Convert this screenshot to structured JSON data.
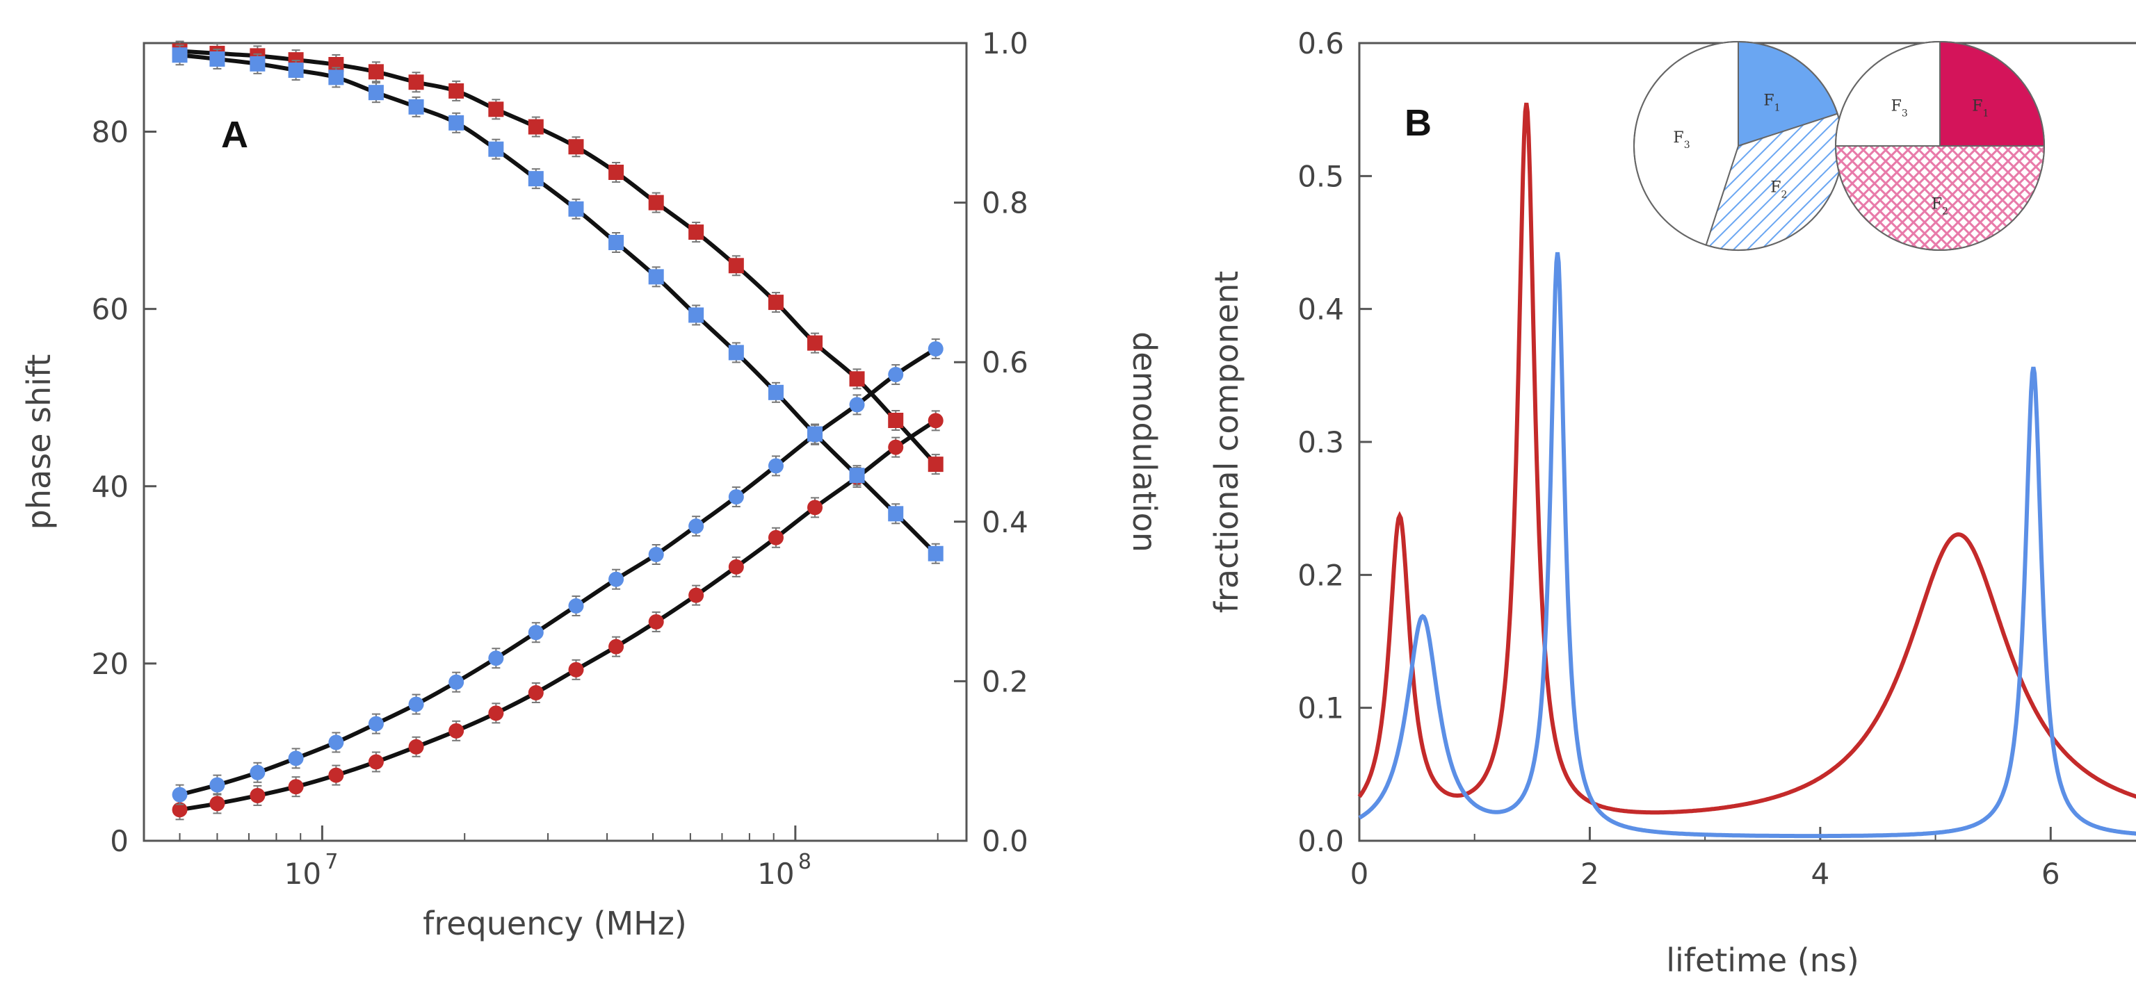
{
  "colors": {
    "blue": "#5b8fe6",
    "red": "#c42a2a",
    "black": "#111111",
    "axis": "#555555",
    "magenta": "#d4145a",
    "pink": "#e87aa9",
    "light_blue": "#6aa6f2"
  },
  "chart_data": [
    {
      "type": "scatter",
      "panel_label": "A",
      "xlabel": "frequency (MHz)",
      "ylabel_left": "phase shift",
      "ylabel_right": "demodulation",
      "xscale": "log",
      "xlim": [
        4200000.0,
        230000000.0
      ],
      "ylim_left": [
        0,
        90
      ],
      "ylim_right": [
        0,
        1
      ],
      "xticks": [
        {
          "value": 10000000.0,
          "label": "10",
          "exp": "7"
        },
        {
          "value": 100000000.0,
          "label": "10",
          "exp": "8"
        }
      ],
      "yticks_left": [
        "0",
        "20",
        "40",
        "60",
        "80"
      ],
      "yticks_right": [
        "0.0",
        "0.2",
        "0.4",
        "0.6",
        "0.8",
        "1.0"
      ],
      "x": [
        5000000.0,
        6000000.0,
        7300000.0,
        8800000.0,
        10700000.0,
        13000000.0,
        15800000.0,
        19200000.0,
        23300000.0,
        28300000.0,
        34400000.0,
        41800000.0,
        50800000.0,
        61700000.0,
        75000000.0,
        91000000.0,
        110000000.0,
        135000000.0,
        163000000.0,
        198000000.0
      ],
      "series": [
        {
          "name": "red phase shift",
          "color": "red",
          "marker": "circle",
          "values": [
            3.5,
            4.2,
            5.1,
            6.1,
            7.4,
            8.9,
            10.6,
            12.4,
            14.4,
            16.7,
            19.3,
            21.9,
            24.7,
            27.7,
            30.9,
            34.2,
            37.6,
            41.0,
            44.4,
            47.4
          ]
        },
        {
          "name": "blue phase shift",
          "color": "blue",
          "marker": "circle",
          "values": [
            5.2,
            6.3,
            7.7,
            9.3,
            11.1,
            13.2,
            15.4,
            17.9,
            20.6,
            23.5,
            26.5,
            29.5,
            32.3,
            35.5,
            38.8,
            42.3,
            45.8,
            49.2,
            52.6,
            55.5
          ]
        },
        {
          "name": "red demodulation",
          "color": "red",
          "marker": "square",
          "values": [
            0.99,
            0.987,
            0.984,
            0.979,
            0.973,
            0.964,
            0.951,
            0.94,
            0.917,
            0.895,
            0.87,
            0.838,
            0.8,
            0.763,
            0.721,
            0.675,
            0.624,
            0.579,
            0.527,
            0.472
          ]
        },
        {
          "name": "blue demodulation",
          "color": "blue",
          "marker": "square",
          "values": [
            0.985,
            0.98,
            0.974,
            0.966,
            0.957,
            0.938,
            0.92,
            0.9,
            0.867,
            0.83,
            0.792,
            0.75,
            0.707,
            0.659,
            0.612,
            0.562,
            0.51,
            0.458,
            0.41,
            0.36
          ]
        }
      ]
    },
    {
      "type": "line",
      "panel_label": "B",
      "xlabel": "lifetime (ns)",
      "ylabel": "fractional component",
      "xlim": [
        0,
        7
      ],
      "ylim": [
        0,
        0.6
      ],
      "xticks": [
        "0",
        "2",
        "4",
        "6"
      ],
      "yticks": [
        "0.0",
        "0.1",
        "0.2",
        "0.3",
        "0.4",
        "0.5",
        "0.6"
      ],
      "series": [
        {
          "name": "red",
          "color": "red",
          "baseline": 0.008,
          "peaks": [
            {
              "center": 0.35,
              "height": 0.23,
              "width": 0.11
            },
            {
              "center": 1.45,
              "height": 0.54,
              "width": 0.09
            },
            {
              "center": 5.2,
              "height": 0.222,
              "width": 0.55
            }
          ]
        },
        {
          "name": "blue",
          "color": "blue",
          "baseline": 0.002,
          "peaks": [
            {
              "center": 0.55,
              "height": 0.165,
              "width": 0.17
            },
            {
              "center": 1.72,
              "height": 0.437,
              "width": 0.075
            },
            {
              "center": 5.85,
              "height": 0.354,
              "width": 0.085
            }
          ]
        }
      ],
      "insets": [
        {
          "name": "blue pie",
          "slices": [
            {
              "label": "F",
              "sub": "1",
              "fraction": 0.2,
              "fill": "light_blue"
            },
            {
              "label": "F",
              "sub": "2",
              "fraction": 0.35,
              "fill": "blue-hatch"
            },
            {
              "label": "F",
              "sub": "3",
              "fraction": 0.45,
              "fill": "white"
            }
          ]
        },
        {
          "name": "red pie",
          "slices": [
            {
              "label": "F",
              "sub": "1",
              "fraction": 0.25,
              "fill": "magenta"
            },
            {
              "label": "F",
              "sub": "2",
              "fraction": 0.5,
              "fill": "pink-crosshatch"
            },
            {
              "label": "F",
              "sub": "3",
              "fraction": 0.25,
              "fill": "white"
            }
          ]
        }
      ]
    }
  ]
}
